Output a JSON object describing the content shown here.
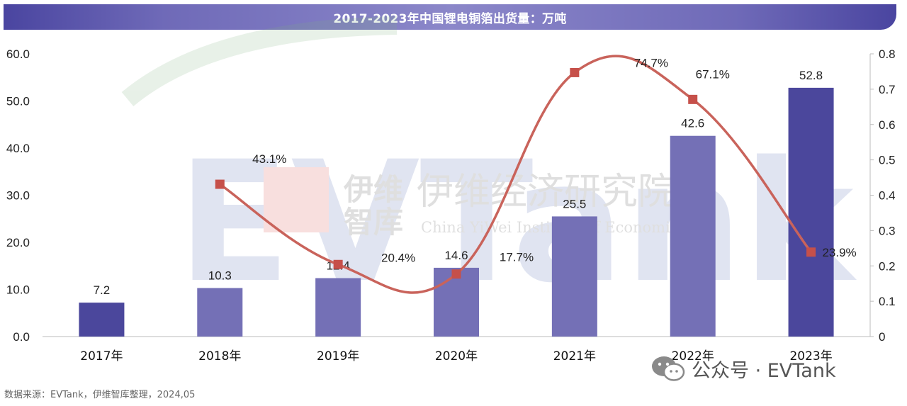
{
  "title": "2017-2023年中国锂电铜箔出货量：万吨",
  "source": "数据来源：EVTank，伊维智库整理，2024,05",
  "watermark": {
    "brand": "EVTank",
    "cn_short_1": "伊维",
    "cn_short_2": "智库",
    "cn_long": "伊维经济研究院",
    "en": "China YiWei Institute of Economics"
  },
  "wechat_label": "公众号 · EVTank",
  "colors": {
    "bar_dark": "#4b479c",
    "bar_light": "#7470b6",
    "line": "#c9635b",
    "marker": "#c6504a",
    "axis": "#bbbbbb"
  },
  "chart_data": {
    "type": "bar+line",
    "title": "2017-2023年中国锂电铜箔出货量：万吨",
    "categories": [
      "2017年",
      "2018年",
      "2019年",
      "2020年",
      "2021年",
      "2022年",
      "2023年"
    ],
    "series": [
      {
        "type": "bar",
        "axis": "left",
        "values": [
          7.2,
          10.3,
          12.4,
          14.6,
          25.5,
          42.6,
          52.8
        ],
        "labels": [
          "7.2",
          "10.3",
          "12.4",
          "14.6",
          "25.5",
          "42.6",
          "52.8"
        ]
      },
      {
        "type": "line",
        "axis": "right",
        "values": [
          null,
          0.431,
          0.204,
          0.177,
          0.747,
          0.671,
          0.239
        ],
        "labels": [
          "",
          "43.1%",
          "20.4%",
          "17.7%",
          "74.7%",
          "67.1%",
          "23.9%"
        ]
      }
    ],
    "y_left": {
      "min": 0,
      "max": 60,
      "ticks": [
        "0.0",
        "10.0",
        "20.0",
        "30.0",
        "40.0",
        "50.0",
        "60.0"
      ]
    },
    "y_right": {
      "min": 0,
      "max": 0.8,
      "ticks": [
        "0",
        "0.1",
        "0.2",
        "0.3",
        "0.4",
        "0.5",
        "0.6",
        "0.7",
        "0.8"
      ]
    },
    "grid": false,
    "legend": "none"
  }
}
